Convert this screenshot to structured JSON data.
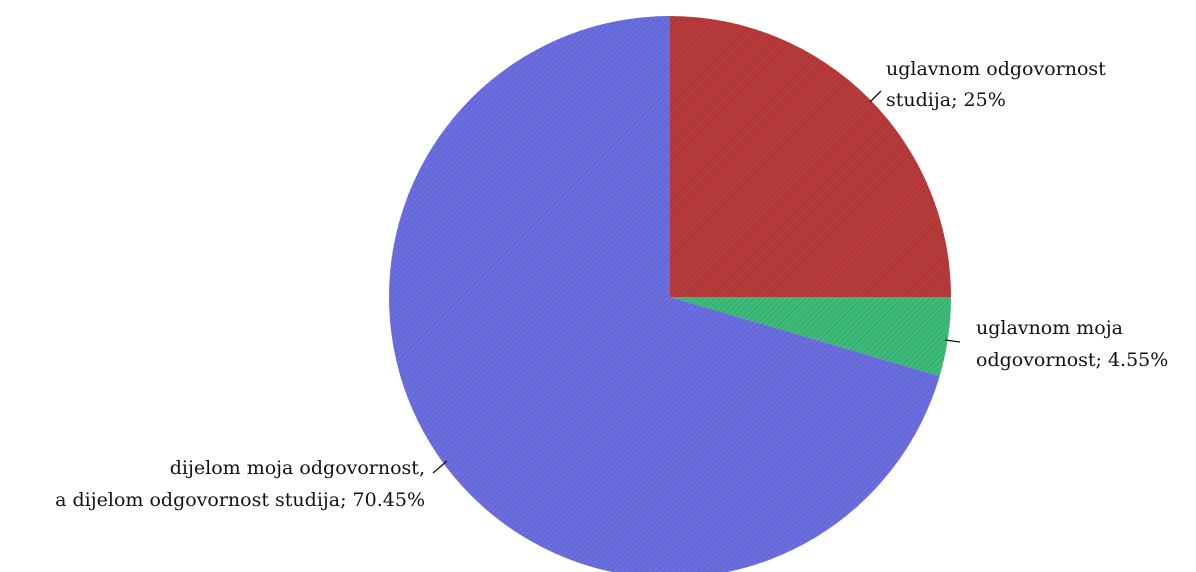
{
  "chart_data": {
    "type": "pie",
    "title": "",
    "start_angle_deg": 0,
    "direction": "clockwise",
    "slices": [
      {
        "key": "studija",
        "label_lines": [
          "uglavnom odgovornost",
          "studija; 25%"
        ],
        "value": 25,
        "color": "#b83a3a"
      },
      {
        "key": "moja",
        "label_lines": [
          "uglavnom moja",
          "odgovornost; 4.55%"
        ],
        "value": 4.55,
        "color": "#3dbb78"
      },
      {
        "key": "dijelom",
        "label_lines": [
          "dijelom moja odgovornost,",
          "a dijelom odgovornost studija; 70.45%"
        ],
        "value": 70.45,
        "color": "#6a6ee0"
      }
    ]
  }
}
